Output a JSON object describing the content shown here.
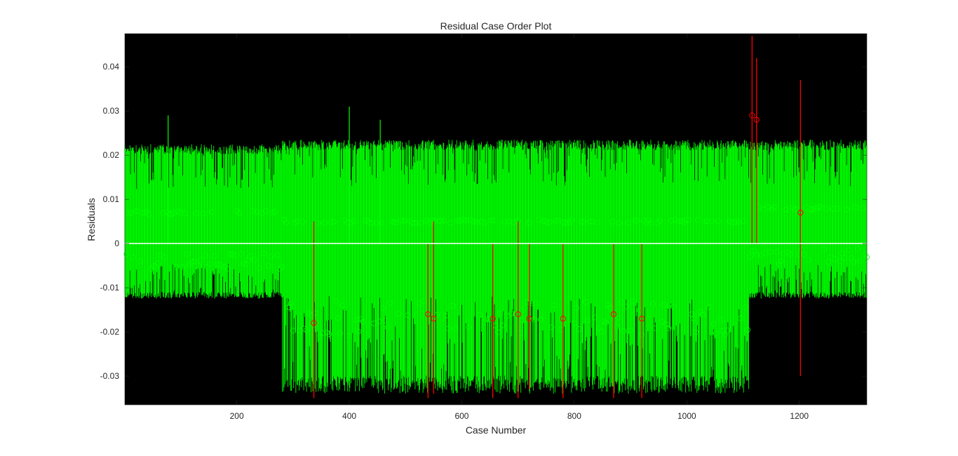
{
  "chart_data": {
    "type": "residual-case-order",
    "title": "Residual Case Order Plot",
    "xlabel": "Case Number",
    "ylabel": "Residuals",
    "xlim": [
      1,
      1320
    ],
    "ylim": [
      -0.0365,
      0.0475
    ],
    "xticks": [
      {
        "value": 200,
        "label": "200"
      },
      {
        "value": 400,
        "label": "400"
      },
      {
        "value": 600,
        "label": "600"
      },
      {
        "value": 800,
        "label": "800"
      },
      {
        "value": 1000,
        "label": "1000"
      },
      {
        "value": 1200,
        "label": "1200"
      }
    ],
    "yticks": [
      {
        "value": 0.04,
        "label": "0.04"
      },
      {
        "value": 0.03,
        "label": "0.03"
      },
      {
        "value": 0.02,
        "label": "0.02"
      },
      {
        "value": 0.01,
        "label": "0.01"
      },
      {
        "value": 0,
        "label": "0"
      },
      {
        "value": -0.01,
        "label": "-0.01"
      },
      {
        "value": -0.02,
        "label": "-0.02"
      },
      {
        "value": -0.03,
        "label": "-0.03"
      }
    ],
    "zero_line": 0,
    "background_color": "#000000",
    "colors": {
      "normal": "#00ff00",
      "outlier": "#ff0000",
      "zero_line": "#ffffff"
    },
    "grid": false,
    "legend": "none",
    "segments": [
      {
        "from_case": 1,
        "to_case": 280,
        "band_low": -0.0125,
        "band_high": 0.0225,
        "residual_mean": 0.005
      },
      {
        "from_case": 281,
        "to_case": 1110,
        "band_low": -0.034,
        "band_high": 0.0235,
        "residual_mean": 0.003
      },
      {
        "from_case": 1111,
        "to_case": 1320,
        "band_low": -0.0125,
        "band_high": 0.0235,
        "residual_mean": 0.006
      }
    ],
    "outliers": [
      {
        "case": 337,
        "low": -0.035,
        "high": 0.005,
        "residual": -0.018
      },
      {
        "case": 540,
        "low": -0.035,
        "high": 0.0,
        "residual": -0.016
      },
      {
        "case": 550,
        "low": -0.034,
        "high": 0.005,
        "residual": -0.017
      },
      {
        "case": 655,
        "low": -0.035,
        "high": 0.0,
        "residual": -0.017
      },
      {
        "case": 700,
        "low": -0.035,
        "high": 0.005,
        "residual": -0.016
      },
      {
        "case": 720,
        "low": -0.033,
        "high": 0.0,
        "residual": -0.017
      },
      {
        "case": 780,
        "low": -0.035,
        "high": 0.0,
        "residual": -0.017
      },
      {
        "case": 870,
        "low": -0.035,
        "high": 0.0,
        "residual": -0.016
      },
      {
        "case": 920,
        "low": -0.035,
        "high": 0.0,
        "residual": -0.017
      },
      {
        "case": 1116,
        "low": 0.0,
        "high": 0.047,
        "residual": 0.029
      },
      {
        "case": 1124,
        "low": 0.0,
        "high": 0.042,
        "residual": 0.028
      },
      {
        "case": 1202,
        "low": -0.03,
        "high": 0.037,
        "residual": 0.007
      }
    ],
    "spikes": [
      {
        "case": 78,
        "high": 0.029
      },
      {
        "case": 400,
        "high": 0.031
      },
      {
        "case": 455,
        "high": 0.028
      }
    ]
  }
}
